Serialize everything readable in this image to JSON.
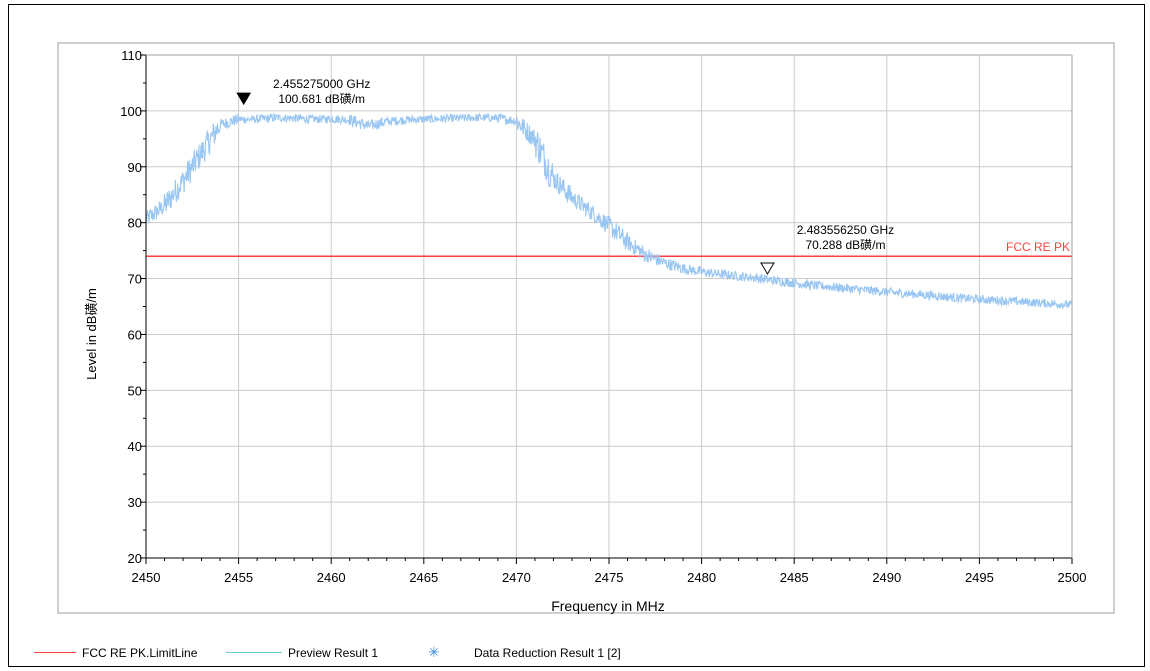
{
  "chart_data": {
    "type": "line",
    "xlabel": "Frequency in MHz",
    "ylabel": "Level in dB磺/m",
    "xlim": [
      2450,
      2500
    ],
    "ylim": [
      20,
      110
    ],
    "x_ticks": [
      "2450",
      "2455",
      "2460",
      "2465",
      "2470",
      "2475",
      "2480",
      "2485",
      "2490",
      "2495",
      "2500"
    ],
    "y_ticks": [
      "20",
      "30",
      "40",
      "50",
      "60",
      "70",
      "80",
      "90",
      "100",
      "110"
    ],
    "grid": true,
    "limit_line": {
      "name": "FCC RE PK",
      "value": 74,
      "color": "#ff4040"
    },
    "series": [
      {
        "name": "Preview Result 1",
        "color": "#99c6f2",
        "x": [
          2450,
          2451,
          2452,
          2453,
          2454,
          2455,
          2456,
          2457,
          2458,
          2459,
          2460,
          2461,
          2462,
          2463,
          2464,
          2465,
          2466,
          2467,
          2468,
          2469,
          2470,
          2471,
          2472,
          2473,
          2474,
          2475,
          2476,
          2477,
          2478,
          2479,
          2480,
          2481,
          2482,
          2483,
          2484,
          2485,
          2486,
          2487,
          2488,
          2489,
          2490,
          2491,
          2492,
          2493,
          2494,
          2495,
          2496,
          2497,
          2498,
          2499,
          2500
        ],
        "values": [
          80.5,
          83,
          87.5,
          92.5,
          97.5,
          98.5,
          98.5,
          98.8,
          98.7,
          98.5,
          98.6,
          98.4,
          97.3,
          98.1,
          98.4,
          98.5,
          98.6,
          98.7,
          98.8,
          98.7,
          98.2,
          95,
          88,
          84.5,
          82,
          79.5,
          76.5,
          74.2,
          72.8,
          71.8,
          71.2,
          70.8,
          70.4,
          70.1,
          69.6,
          69.2,
          68.8,
          68.5,
          68.2,
          67.9,
          67.6,
          67.3,
          67.1,
          66.8,
          66.5,
          66.3,
          66.1,
          65.9,
          65.7,
          65.5,
          65.3
        ]
      }
    ],
    "markers": [
      {
        "x": 2455.275,
        "y": 100.681,
        "label_freq": "2.455275000 GHz",
        "label_level": "100.681 dB磺/m",
        "filled": true
      },
      {
        "x": 2483.55625,
        "y": 70.288,
        "label_freq": "2.483556250 GHz",
        "label_level": "70.288 dB磺/m",
        "filled": false
      }
    ],
    "legend": [
      {
        "label": "FCC RE PK.LimitLine",
        "color": "#ff4040",
        "kind": "line"
      },
      {
        "label": "Preview Result 1",
        "color": "#66c6d8",
        "kind": "line"
      },
      {
        "label": "Data Reduction Result 1 [2]",
        "color": "#3c8edc",
        "kind": "star"
      }
    ]
  }
}
